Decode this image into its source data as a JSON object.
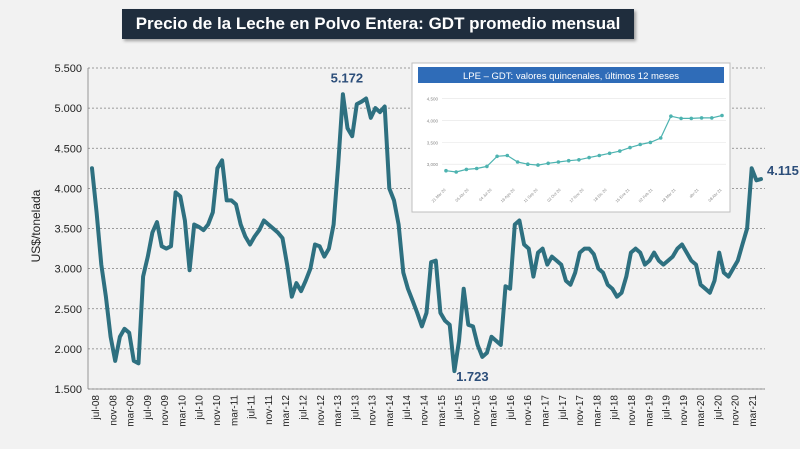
{
  "title": "Precio de la Leche  en Polvo Entera: GDT promedio mensual",
  "colors": {
    "line": "#2e7080",
    "inset_line": "#4db3b0",
    "inset_title_bg": "#2f6cb8",
    "label": "#2c4e7a",
    "title_bg": "#1f2d3d"
  },
  "chart_data": [
    {
      "type": "line",
      "title": "Precio de la Leche  en Polvo Entera: GDT promedio mensual",
      "xlabel": "",
      "ylabel": "US$/tonelada",
      "ylim": [
        1500,
        5500
      ],
      "yticks": [
        1500,
        2000,
        2500,
        3000,
        3500,
        4000,
        4500,
        5000,
        5500
      ],
      "ytick_labels": [
        "1.500",
        "2.000",
        "2.500",
        "3.000",
        "3.500",
        "4.000",
        "4.500",
        "5.000",
        "5.500"
      ],
      "xtick_labels": [
        "jul-08",
        "nov-08",
        "mar-09",
        "jul-09",
        "nov-09",
        "mar-10",
        "jul-10",
        "nov-10",
        "mar-11",
        "jul-11",
        "nov-11",
        "mar-12",
        "jul-12",
        "nov-12",
        "mar-13",
        "jul-13",
        "nov-13",
        "mar-14",
        "jul-14",
        "nov-14",
        "mar-15",
        "jul-15",
        "nov-15",
        "mar-16",
        "jul-16",
        "nov-16",
        "mar-17",
        "jul-17",
        "nov-17",
        "mar-18",
        "jul-18",
        "nov-18",
        "mar-19",
        "jul-19",
        "nov-19",
        "mar-20",
        "jul-20",
        "nov-20",
        "mar-21"
      ],
      "grid": true,
      "series": [
        {
          "name": "GDT promedio mensual",
          "values": [
            4250,
            3700,
            3050,
            2650,
            2150,
            1850,
            2150,
            2250,
            2200,
            1850,
            1820,
            2900,
            3150,
            3450,
            3580,
            3280,
            3250,
            3280,
            3950,
            3900,
            3600,
            2980,
            3550,
            3520,
            3480,
            3550,
            3700,
            4250,
            4350,
            3850,
            3850,
            3800,
            3550,
            3400,
            3300,
            3400,
            3480,
            3600,
            3550,
            3500,
            3450,
            3380,
            3050,
            2650,
            2820,
            2720,
            2850,
            3000,
            3300,
            3280,
            3150,
            3250,
            3550,
            4300,
            5172,
            4750,
            4650,
            5050,
            5080,
            5120,
            4880,
            5000,
            4950,
            5020,
            4000,
            3850,
            3550,
            2950,
            2750,
            2600,
            2450,
            2280,
            2450,
            3080,
            3100,
            2450,
            2350,
            2300,
            1723,
            2100,
            2750,
            2300,
            2280,
            2050,
            1900,
            1950,
            2150,
            2100,
            2050,
            2780,
            2750,
            3550,
            3600,
            3300,
            3250,
            2900,
            3200,
            3250,
            3050,
            3150,
            3100,
            3050,
            2850,
            2800,
            2950,
            3200,
            3250,
            3250,
            3180,
            3000,
            2950,
            2800,
            2750,
            2650,
            2700,
            2900,
            3200,
            3250,
            3200,
            3050,
            3100,
            3200,
            3100,
            3050,
            3100,
            3150,
            3250,
            3300,
            3200,
            3100,
            3050,
            2800,
            2750,
            2700,
            2850,
            3200,
            2950,
            2900,
            3000,
            3100,
            3300,
            3500,
            4250,
            4100,
            4115
          ]
        }
      ],
      "annotations": [
        {
          "text": "5.172",
          "value": 5172
        },
        {
          "text": "1.723",
          "value": 1723
        },
        {
          "text": "4.115",
          "value": 4115
        }
      ]
    },
    {
      "type": "line",
      "title": "LPE – GDT: valores  quincenales, últimos 12 meses",
      "ylim": [
        2500,
        4700
      ],
      "yticks": [
        3000,
        3500,
        4000,
        4500
      ],
      "ytick_labels": [
        "3,000",
        "3,500",
        "4,000",
        "4,500"
      ],
      "xtick_labels": [
        "21 Mar 20",
        "05 Abr 20",
        "04 Jul 20",
        "16 Ago 20",
        "11 Sep 20",
        "02 Oct 20",
        "17 Nov 20",
        "18 Dic 20",
        "15 Ene 21",
        "02 Feb 21",
        "18 Mar 21",
        "abr-21",
        "08 Abr 21"
      ],
      "grid": true,
      "series": [
        {
          "name": "LPE – GDT quincenal",
          "values": [
            2850,
            2820,
            2880,
            2900,
            2950,
            3180,
            3200,
            3050,
            3000,
            2980,
            3020,
            3050,
            3080,
            3100,
            3150,
            3200,
            3250,
            3300,
            3380,
            3450,
            3500,
            3600,
            4100,
            4050,
            4050,
            4060,
            4060,
            4115
          ]
        }
      ]
    }
  ]
}
